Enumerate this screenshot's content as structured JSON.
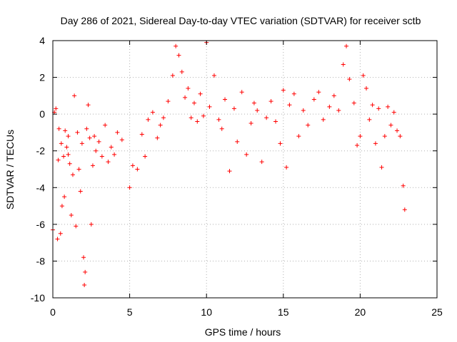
{
  "chart_data": {
    "type": "scatter",
    "title": "Day 286 of 2021, Sidereal Day-to-day VTEC variation (SDTVAR) for receiver sctb",
    "xlabel": "GPS time / hours",
    "ylabel": "SDTVAR / TECUs",
    "xlim": [
      0,
      25
    ],
    "ylim": [
      -10,
      4
    ],
    "xticks": [
      "0",
      "5",
      "10",
      "15",
      "20",
      "25"
    ],
    "yticks": [
      "4",
      "2",
      "0",
      "-2",
      "-4",
      "-6",
      "-8",
      "-10"
    ],
    "grid": true,
    "marker": "+",
    "marker_color": "#ff0000",
    "series": [
      {
        "name": "SDTVAR",
        "x": [
          0.0,
          0.1,
          0.2,
          0.3,
          0.35,
          0.4,
          0.5,
          0.55,
          0.6,
          0.7,
          0.75,
          0.8,
          0.9,
          1.0,
          1.0,
          1.1,
          1.2,
          1.3,
          1.4,
          1.5,
          1.6,
          1.7,
          1.8,
          1.9,
          2.0,
          2.05,
          2.1,
          2.2,
          2.3,
          2.4,
          2.5,
          2.6,
          2.7,
          2.8,
          3.0,
          3.2,
          3.4,
          3.6,
          3.8,
          4.0,
          4.2,
          4.5,
          5.0,
          5.2,
          5.5,
          5.8,
          6.0,
          6.2,
          6.5,
          6.8,
          7.0,
          7.2,
          7.5,
          7.8,
          8.0,
          8.2,
          8.4,
          8.6,
          8.8,
          9.0,
          9.2,
          9.4,
          9.6,
          9.8,
          10.0,
          10.2,
          10.5,
          10.8,
          11.0,
          11.2,
          11.5,
          11.8,
          12.0,
          12.3,
          12.6,
          12.9,
          13.1,
          13.3,
          13.6,
          13.9,
          14.2,
          14.5,
          14.8,
          15.0,
          15.2,
          15.4,
          15.7,
          16.0,
          16.3,
          16.6,
          17.0,
          17.3,
          17.6,
          18.0,
          18.3,
          18.6,
          18.9,
          19.1,
          19.3,
          19.6,
          19.8,
          20.0,
          20.2,
          20.4,
          20.6,
          20.8,
          21.0,
          21.2,
          21.4,
          21.6,
          21.8,
          22.0,
          22.2,
          22.4,
          22.6,
          22.8,
          22.9
        ],
        "y": [
          -6.3,
          0.1,
          0.3,
          -6.8,
          -2.5,
          -0.8,
          -6.5,
          -1.6,
          -5.0,
          -2.3,
          -4.5,
          -0.9,
          -1.8,
          -2.2,
          -1.2,
          -2.7,
          -5.5,
          -3.3,
          1.0,
          -6.1,
          -1.0,
          -3.0,
          -4.2,
          -1.6,
          -7.8,
          -9.3,
          -8.6,
          -0.8,
          0.5,
          -1.3,
          -6.0,
          -2.8,
          -1.2,
          -2.0,
          -1.5,
          -2.3,
          -0.6,
          -2.6,
          -1.8,
          -2.2,
          -1.0,
          -1.4,
          -4.0,
          -2.8,
          -3.0,
          -1.1,
          -2.3,
          -0.3,
          0.1,
          -1.3,
          -0.6,
          -0.2,
          0.7,
          2.1,
          3.7,
          3.2,
          2.3,
          0.9,
          1.4,
          -0.2,
          0.6,
          -0.4,
          1.1,
          -0.1,
          3.9,
          0.4,
          2.1,
          -0.3,
          -0.8,
          0.8,
          -3.1,
          0.3,
          -1.5,
          1.2,
          -2.2,
          -0.5,
          0.6,
          0.2,
          -2.6,
          -0.2,
          0.7,
          -0.4,
          -1.6,
          1.3,
          -2.9,
          0.5,
          1.1,
          -1.2,
          0.2,
          -0.6,
          0.8,
          1.2,
          -0.3,
          0.4,
          1.0,
          0.2,
          2.7,
          3.7,
          1.9,
          0.6,
          -1.7,
          -1.2,
          2.1,
          1.4,
          -0.3,
          0.5,
          -1.6,
          0.3,
          -2.9,
          -1.2,
          0.4,
          -0.6,
          0.1,
          -0.9,
          -1.2,
          -3.9,
          -5.2
        ]
      }
    ]
  }
}
